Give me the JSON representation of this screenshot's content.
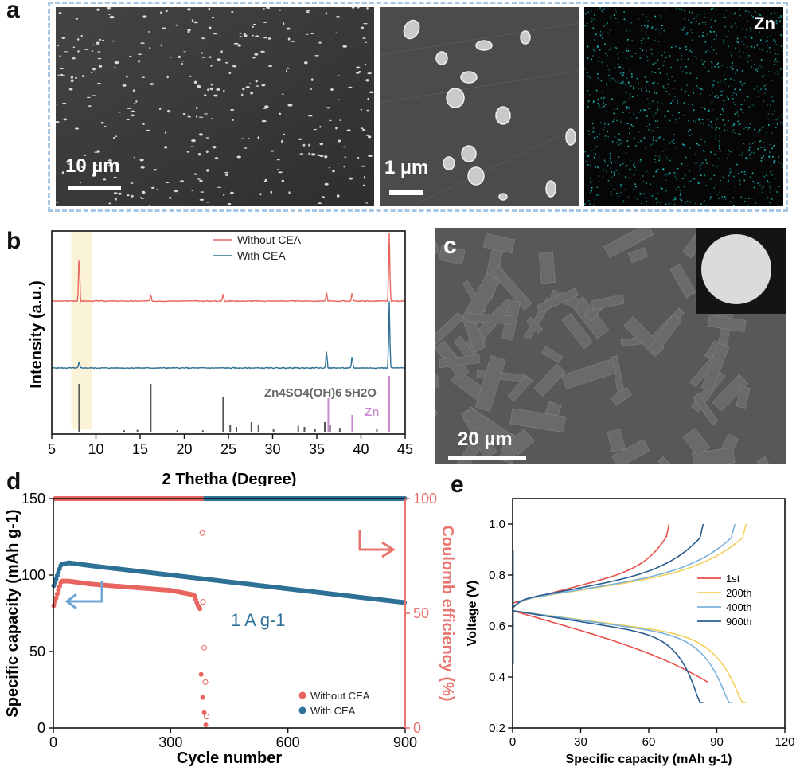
{
  "panels": {
    "a": {
      "letter": "a",
      "images": [
        {
          "scale": "10 µm"
        },
        {
          "scale": "1 µm"
        },
        {
          "map_label": "Zn"
        }
      ]
    },
    "b": {
      "letter": "b"
    },
    "c": {
      "letter": "c",
      "scale": "20 µm"
    },
    "d": {
      "letter": "d"
    },
    "e": {
      "letter": "e"
    }
  },
  "chart_data": [
    {
      "panel": "b",
      "type": "line",
      "xlabel": "2 Thetha (Degree)",
      "ylabel": "Intensity (a.u.)",
      "xlim": [
        5,
        45
      ],
      "xticks": [
        5,
        10,
        15,
        20,
        25,
        30,
        35,
        40,
        45
      ],
      "legend": [
        "Without CEA",
        "With CEA"
      ],
      "ref_labels": [
        "Zn4SO4(OH)6 5H2O",
        "Zn"
      ],
      "colors": {
        "without": "#e8655f",
        "with": "#2f7196",
        "ref": "#555555",
        "zn": "#c98bd0",
        "highlight": "#fbf3d7"
      },
      "highlight_range": [
        7.2,
        9.6
      ],
      "peaks_without": [
        [
          8.1,
          0.55
        ],
        [
          16.2,
          0.08
        ],
        [
          24.4,
          0.08
        ],
        [
          36.1,
          0.1
        ],
        [
          39.0,
          0.1
        ],
        [
          43.2,
          0.78
        ]
      ],
      "peaks_with": [
        [
          8.1,
          0.07
        ],
        [
          36.1,
          0.2
        ],
        [
          39.0,
          0.14
        ],
        [
          43.2,
          0.76
        ]
      ],
      "ref_lines": [
        [
          8.1,
          1.0
        ],
        [
          16.2,
          1.0
        ],
        [
          24.4,
          0.72
        ],
        [
          25.2,
          0.14
        ],
        [
          25.9,
          0.1
        ],
        [
          27.6,
          0.2
        ],
        [
          28.4,
          0.14
        ],
        [
          30.1,
          0.06
        ],
        [
          32.9,
          0.12
        ],
        [
          33.6,
          0.1
        ],
        [
          34.8,
          0.05
        ],
        [
          35.9,
          0.2
        ],
        [
          36.5,
          0.14
        ],
        [
          37.6,
          0.08
        ],
        [
          41.8,
          0.06
        ],
        [
          13.2,
          0.03
        ],
        [
          14.7,
          0.04
        ],
        [
          19.2,
          0.03
        ],
        [
          22.1,
          0.03
        ]
      ],
      "zn_lines": [
        [
          36.3,
          0.6
        ],
        [
          39.0,
          0.3
        ],
        [
          43.2,
          1.0
        ]
      ]
    },
    {
      "panel": "d",
      "type": "scatter",
      "xlabel": "Cycle number",
      "ylabel": "Specific capacity (mAh g-1)",
      "y2label": "Coulomb efficiency (%)",
      "xlim": [
        0,
        900
      ],
      "ylim": [
        0,
        150
      ],
      "y2lim": [
        0,
        100
      ],
      "xticks": [
        0,
        300,
        600,
        900
      ],
      "yticks": [
        0,
        50,
        100,
        150
      ],
      "y2ticks": [
        0,
        50,
        100
      ],
      "annotation": "1 A g-1",
      "legend": [
        "Without CEA",
        "With CEA"
      ],
      "colors": {
        "without": "#e8655f",
        "with": "#2f7196",
        "arrow_left": "#6fa8d6",
        "arrow_right": "#e8756f",
        "y2axis": "#e8756f"
      },
      "series": [
        {
          "name": "Without CEA",
          "capacity": [
            [
              1,
              80
            ],
            [
              20,
              96
            ],
            [
              40,
              96
            ],
            [
              100,
              94
            ],
            [
              200,
              92
            ],
            [
              300,
              90
            ],
            [
              360,
              87
            ],
            [
              370,
              80
            ],
            [
              375,
              78
            ],
            [
              378,
              35
            ],
            [
              382,
              20
            ],
            [
              386,
              10
            ],
            [
              390,
              2
            ]
          ]
        },
        {
          "name": "With CEA",
          "capacity": [
            [
              1,
              93
            ],
            [
              20,
              107
            ],
            [
              40,
              108
            ],
            [
              100,
              106
            ],
            [
              200,
              103
            ],
            [
              300,
              100
            ],
            [
              400,
              97
            ],
            [
              500,
              94
            ],
            [
              600,
              91
            ],
            [
              700,
              88
            ],
            [
              800,
              85
            ],
            [
              900,
              82
            ]
          ]
        }
      ],
      "ce_without": [
        [
          5,
          100
        ],
        [
          380,
          100
        ],
        [
          381,
          85
        ],
        [
          383,
          55
        ],
        [
          386,
          35
        ],
        [
          389,
          20
        ],
        [
          392,
          5
        ]
      ],
      "ce_with": [
        [
          5,
          100
        ],
        [
          900,
          100
        ]
      ]
    },
    {
      "panel": "e",
      "type": "line",
      "xlabel": "Specific capacity (mAh g-1)",
      "ylabel": "Voltage (V)",
      "xlim": [
        0,
        120
      ],
      "ylim": [
        0.2,
        1.1
      ],
      "xticks": [
        0,
        30,
        60,
        90,
        120
      ],
      "yticks": [
        0.2,
        0.4,
        0.6,
        0.8,
        1.0
      ],
      "series": [
        {
          "name": "1st",
          "color": "#e8504a",
          "charge_cap": 69,
          "discharge_cap": 86
        },
        {
          "name": "200th",
          "color": "#f4cf5a",
          "charge_cap": 103,
          "discharge_cap": 103
        },
        {
          "name": "400th",
          "color": "#7bb2dc",
          "charge_cap": 98,
          "discharge_cap": 97
        },
        {
          "name": "900th",
          "color": "#2a5d8f",
          "charge_cap": 84,
          "discharge_cap": 84
        }
      ]
    }
  ]
}
